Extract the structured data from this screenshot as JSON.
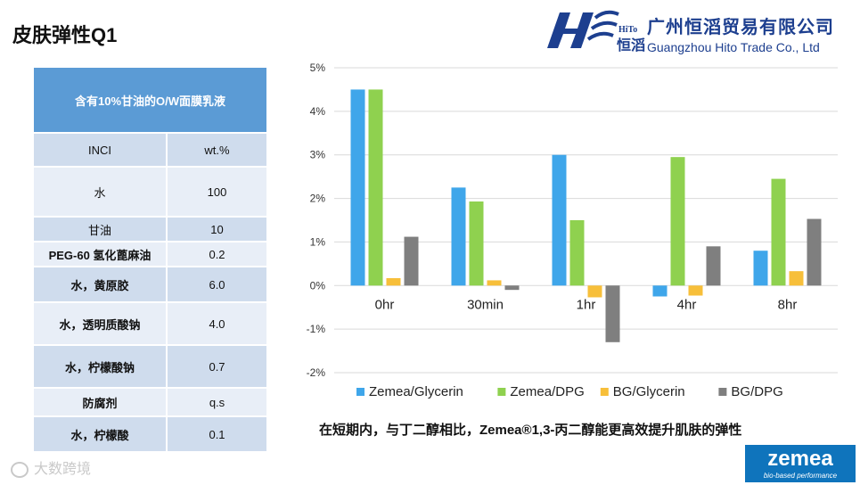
{
  "slide": {
    "title": "皮肤弹性Q1",
    "caption": "在短期内，与丁二醇相比，Zemea®1,3-丙二醇能更高效提升肌肤的弹性",
    "watermark": "大数跨境"
  },
  "logo": {
    "mark_text": "HiTo",
    "mark_cn": "恒滔",
    "company_cn": "广州恒滔贸易有限公司",
    "company_en": "Guangzhou Hito Trade Co., Ltd"
  },
  "brand": {
    "name": "zemea",
    "tagline": "bio-based performance",
    "color": "#0f74bc"
  },
  "table": {
    "title": "含有10%甘油的O/W面膜乳液",
    "headers": [
      "INCI",
      "wt.%"
    ],
    "rows": [
      {
        "name": "水",
        "value": "100"
      },
      {
        "name": "甘油",
        "value": "10"
      },
      {
        "name": "PEG-60 氢化蓖麻油",
        "value": "0.2"
      },
      {
        "name": "水，黄原胶",
        "value": "6.0"
      },
      {
        "name": "水，透明质酸钠",
        "value": "4.0"
      },
      {
        "name": "水，柠檬酸钠",
        "value": "0.7"
      },
      {
        "name": "防腐剂",
        "value": "q.s"
      },
      {
        "name": "水，柠檬酸",
        "value": "0.1"
      }
    ],
    "colors": {
      "header": "#5b9bd5",
      "odd": "#cfdced",
      "even": "#e8eef7"
    }
  },
  "chart_data": {
    "type": "bar",
    "categories": [
      "0hr",
      "30min",
      "1hr",
      "4hr",
      "8hr"
    ],
    "series": [
      {
        "name": "Zemea/Glycerin",
        "color": "#3fa6ea",
        "values": [
          4.5,
          2.25,
          3.0,
          -0.25,
          0.8
        ]
      },
      {
        "name": "Zemea/DPG",
        "color": "#8fd14f",
        "values": [
          4.5,
          1.93,
          1.5,
          2.95,
          2.45
        ]
      },
      {
        "name": "BG/Glycerin",
        "color": "#f7bf3a",
        "values": [
          0.17,
          0.12,
          -0.27,
          -0.23,
          0.33
        ]
      },
      {
        "name": "BG/DPG",
        "color": "#7f7f7f",
        "values": [
          1.12,
          -0.1,
          -1.3,
          0.9,
          1.53
        ]
      }
    ],
    "ylim": [
      -2,
      5
    ],
    "yticks": [
      "-2%",
      "-1%",
      "0%",
      "1%",
      "2%",
      "3%",
      "4%",
      "5%"
    ],
    "ytick_values": [
      -2,
      -1,
      0,
      1,
      2,
      3,
      4,
      5
    ],
    "legend_position": "bottom",
    "grid": true,
    "title": "",
    "xlabel": "",
    "ylabel": ""
  }
}
